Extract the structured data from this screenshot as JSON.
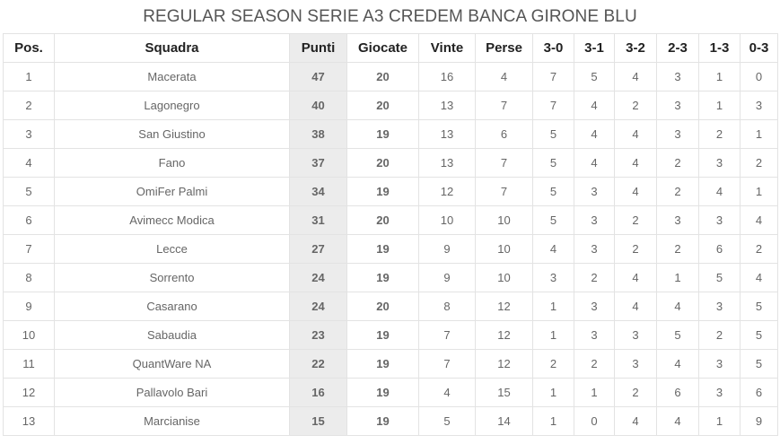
{
  "title": "REGULAR SEASON SERIE A3 CREDEM BANCA GIRONE BLU",
  "headers": [
    "Pos.",
    "Squadra",
    "Punti",
    "Giocate",
    "Vinte",
    "Perse",
    "3-0",
    "3-1",
    "3-2",
    "2-3",
    "1-3",
    "0-3"
  ],
  "rows": [
    [
      "1",
      "Macerata",
      "47",
      "20",
      "16",
      "4",
      "7",
      "5",
      "4",
      "3",
      "1",
      "0"
    ],
    [
      "2",
      "Lagonegro",
      "40",
      "20",
      "13",
      "7",
      "7",
      "4",
      "2",
      "3",
      "1",
      "3"
    ],
    [
      "3",
      "San Giustino",
      "38",
      "19",
      "13",
      "6",
      "5",
      "4",
      "4",
      "3",
      "2",
      "1"
    ],
    [
      "4",
      "Fano",
      "37",
      "20",
      "13",
      "7",
      "5",
      "4",
      "4",
      "2",
      "3",
      "2"
    ],
    [
      "5",
      "OmiFer Palmi",
      "34",
      "19",
      "12",
      "7",
      "5",
      "3",
      "4",
      "2",
      "4",
      "1"
    ],
    [
      "6",
      "Avimecc Modica",
      "31",
      "20",
      "10",
      "10",
      "5",
      "3",
      "2",
      "3",
      "3",
      "4"
    ],
    [
      "7",
      "Lecce",
      "27",
      "19",
      "9",
      "10",
      "4",
      "3",
      "2",
      "2",
      "6",
      "2"
    ],
    [
      "8",
      "Sorrento",
      "24",
      "19",
      "9",
      "10",
      "3",
      "2",
      "4",
      "1",
      "5",
      "4"
    ],
    [
      "9",
      "Casarano",
      "24",
      "20",
      "8",
      "12",
      "1",
      "3",
      "4",
      "4",
      "3",
      "5"
    ],
    [
      "10",
      "Sabaudia",
      "23",
      "19",
      "7",
      "12",
      "1",
      "3",
      "3",
      "5",
      "2",
      "5"
    ],
    [
      "11",
      "QuantWare NA",
      "22",
      "19",
      "7",
      "12",
      "2",
      "2",
      "3",
      "4",
      "3",
      "5"
    ],
    [
      "12",
      "Pallavolo Bari",
      "16",
      "19",
      "4",
      "15",
      "1",
      "1",
      "2",
      "6",
      "3",
      "6"
    ],
    [
      "13",
      "Marcianise",
      "15",
      "19",
      "5",
      "14",
      "1",
      "0",
      "4",
      "4",
      "1",
      "9"
    ]
  ]
}
